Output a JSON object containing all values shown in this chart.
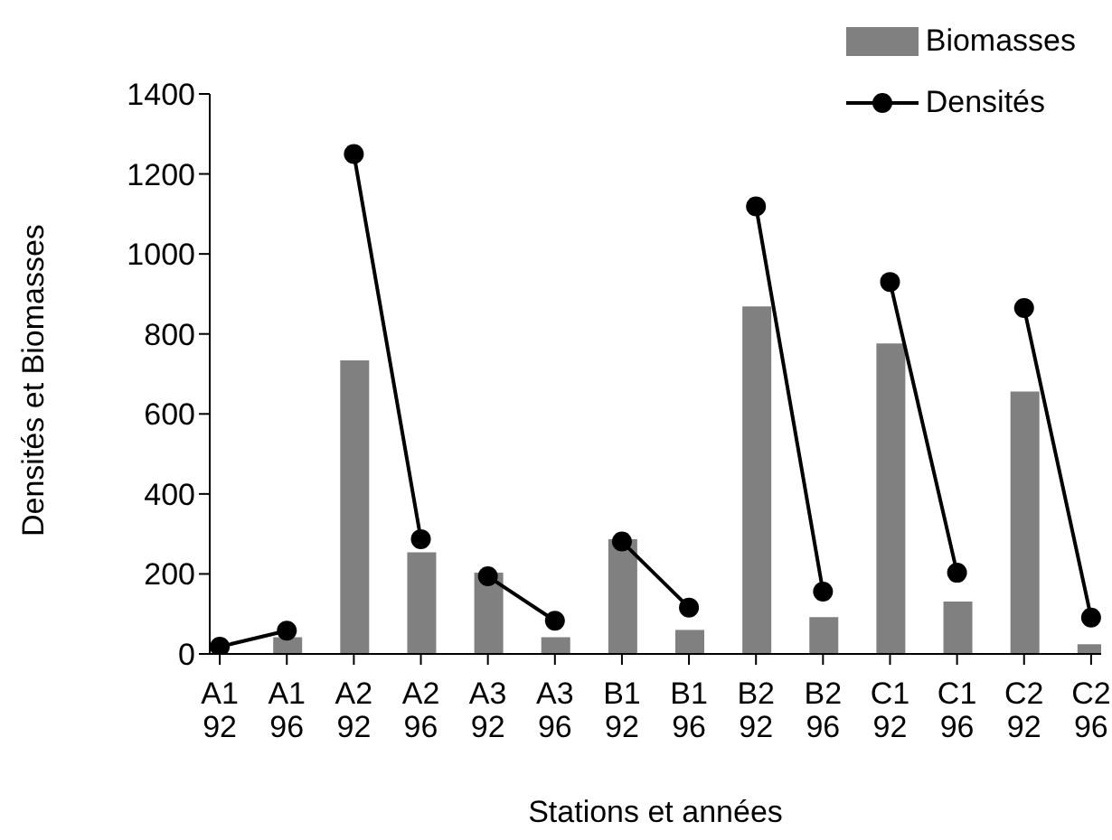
{
  "chart_data": {
    "type": "bar",
    "xlabel": "Stations et années",
    "ylabel": "Densités et Biomasses",
    "categories": [
      "A1 92",
      "A1 96",
      "A2 92",
      "A2 96",
      "A3 92",
      "A3 96",
      "B1 92",
      "B1 96",
      "B2 92",
      "B2 96",
      "C1 92",
      "C1 96",
      "C2 92",
      "C2 96"
    ],
    "series": [
      {
        "name": "Biomasses",
        "color": "#808080",
        "values": [
          0,
          42,
          734,
          254,
          203,
          42,
          287,
          60,
          869,
          92,
          776,
          131,
          656,
          24
        ]
      },
      {
        "name": "Densités",
        "type": "line",
        "color": "#000000",
        "x": [
          "A1 92",
          "A1 96",
          "A2 92",
          "A2 92",
          "A2 96",
          "A3 92",
          "A3 92",
          "A3 96",
          "B1 92",
          "B1 92",
          "B1 96",
          "B2 92",
          "B2 92",
          "B2 96",
          "C1 92",
          "C1 92",
          "C1 96",
          "C2 92",
          "C2 92",
          "C2 96"
        ],
        "values": [
          18,
          58,
          null,
          1250,
          287,
          null,
          194,
          83,
          null,
          281,
          116,
          null,
          1119,
          156,
          null,
          930,
          203,
          null,
          865,
          91
        ]
      }
    ],
    "ylim": [
      0,
      1400
    ],
    "yticks": [
      0,
      200,
      400,
      600,
      800,
      1000,
      1200,
      1400
    ],
    "grid": false,
    "legend": "top right",
    "marker": "circle",
    "line_style": "solid"
  }
}
